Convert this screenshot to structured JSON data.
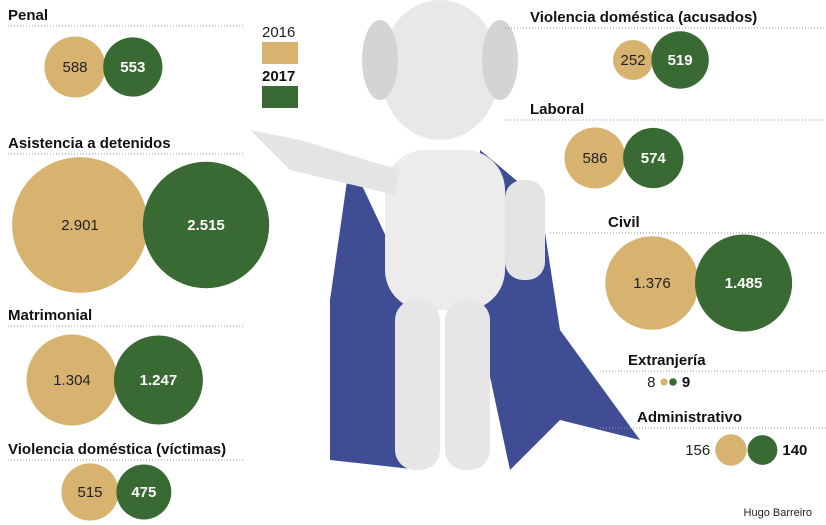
{
  "chart_data": {
    "type": "bubble-pairs",
    "categories": [
      "Penal",
      "Asistencia a detenidos",
      "Matrimonial",
      "Violencia doméstica (víctimas)",
      "Violencia doméstica (acusados)",
      "Laboral",
      "Civil",
      "Extranjería",
      "Administrativo"
    ],
    "series": [
      {
        "name": "2016",
        "color": "#d8b370",
        "values": [
          588,
          2901,
          1304,
          515,
          252,
          586,
          1376,
          8,
          156
        ],
        "value_labels": [
          "588",
          "2.901",
          "1.304",
          "515",
          "252",
          "586",
          "1.376",
          "8",
          "156"
        ]
      },
      {
        "name": "2017",
        "color": "#3a6a33",
        "values": [
          553,
          2515,
          1247,
          475,
          519,
          574,
          1485,
          9,
          140
        ],
        "value_labels": [
          "553",
          "2.515",
          "1.247",
          "475",
          "519",
          "574",
          "1.485",
          "9",
          "140"
        ]
      }
    ],
    "credit": "Hugo Barreiro"
  }
}
